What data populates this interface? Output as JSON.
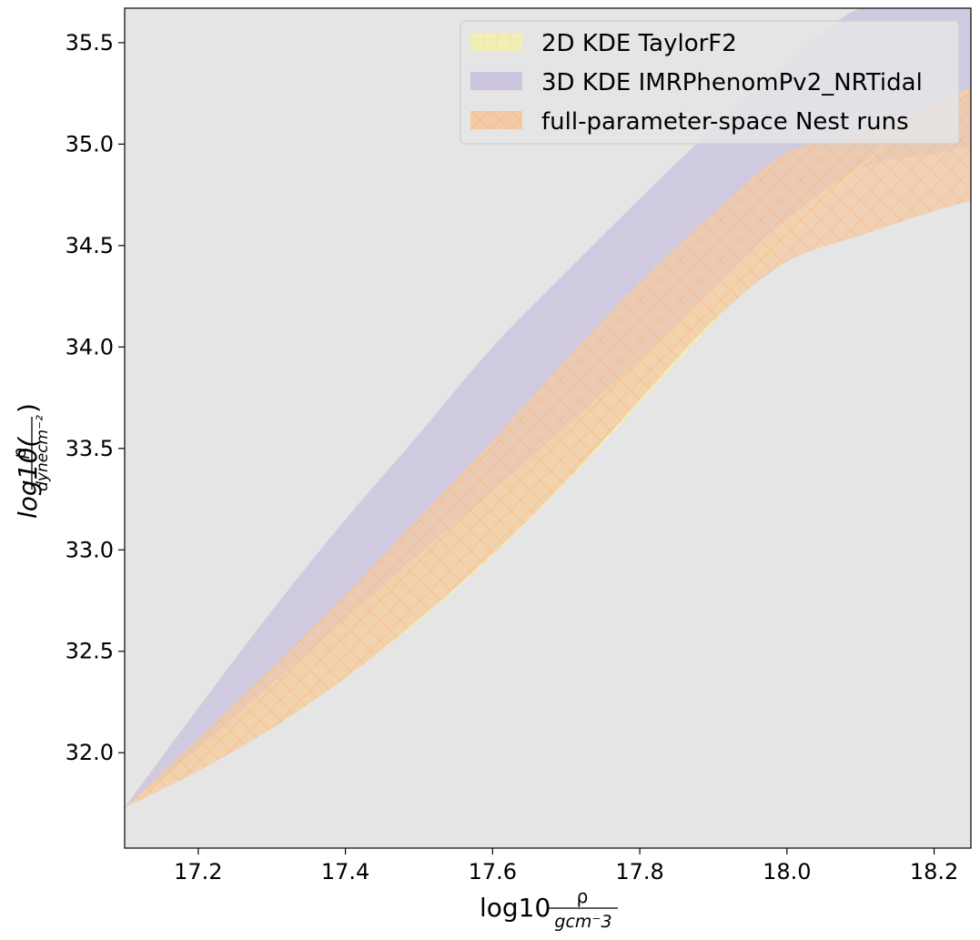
{
  "chart_data": {
    "type": "area",
    "title": "",
    "xlabel": {
      "prefix": "log10",
      "num": "ρ",
      "den": "gcm⁻3"
    },
    "ylabel": {
      "prefix": "log10(",
      "num": "p",
      "den": "dynecm⁻²",
      "suffix": ")"
    },
    "xlim": [
      17.1,
      18.25
    ],
    "ylim": [
      31.53,
      35.67
    ],
    "xticks": [
      17.2,
      17.4,
      17.6,
      17.8,
      18.0,
      18.2
    ],
    "xtick_labels": [
      "17.2",
      "17.4",
      "17.6",
      "17.8",
      "18.0",
      "18.2"
    ],
    "yticks": [
      32.0,
      32.5,
      33.0,
      33.5,
      34.0,
      34.5,
      35.0,
      35.5
    ],
    "ytick_labels": [
      "32.0",
      "32.5",
      "33.0",
      "33.5",
      "34.0",
      "34.5",
      "35.0",
      "35.5"
    ],
    "grid": false,
    "background": "#e5e5e5",
    "legend_position": "top-right",
    "x": [
      17.1,
      17.2,
      17.3,
      17.4,
      17.5,
      17.6,
      17.7,
      17.8,
      17.9,
      18.0,
      18.1,
      18.2,
      18.25
    ],
    "series": [
      {
        "name": "2D KDE TaylorF2",
        "color": "#f1efb6",
        "hatch": "grid",
        "lower": [
          31.73,
          31.92,
          32.12,
          32.37,
          32.65,
          32.97,
          33.33,
          33.72,
          34.12,
          34.52,
          34.88,
          35.16,
          35.25
        ],
        "upper": [
          31.73,
          32.02,
          32.34,
          32.66,
          32.98,
          33.29,
          33.61,
          33.94,
          34.28,
          34.6,
          34.9,
          35.17,
          35.28
        ]
      },
      {
        "name": "3D KDE IMRPhenomPv2_NRTidal",
        "color": "#cdc5df",
        "hatch": "none",
        "lower": [
          31.73,
          31.97,
          32.25,
          32.55,
          32.87,
          33.19,
          33.55,
          33.93,
          34.3,
          34.63,
          34.88,
          34.95,
          34.99
        ],
        "upper": [
          31.73,
          32.22,
          32.7,
          33.15,
          33.57,
          34.0,
          34.37,
          34.73,
          35.08,
          35.4,
          35.67,
          35.67,
          35.67
        ]
      },
      {
        "name": "full-parameter-space Nest runs",
        "color": "#f4c9a6",
        "hatch": "cross",
        "lower": [
          31.73,
          31.91,
          32.12,
          32.37,
          32.66,
          32.98,
          33.34,
          33.74,
          34.13,
          34.42,
          34.55,
          34.67,
          34.72
        ],
        "upper": [
          31.73,
          32.07,
          32.42,
          32.78,
          33.16,
          33.54,
          33.94,
          34.32,
          34.66,
          34.96,
          35.04,
          35.2,
          35.28
        ]
      }
    ]
  }
}
